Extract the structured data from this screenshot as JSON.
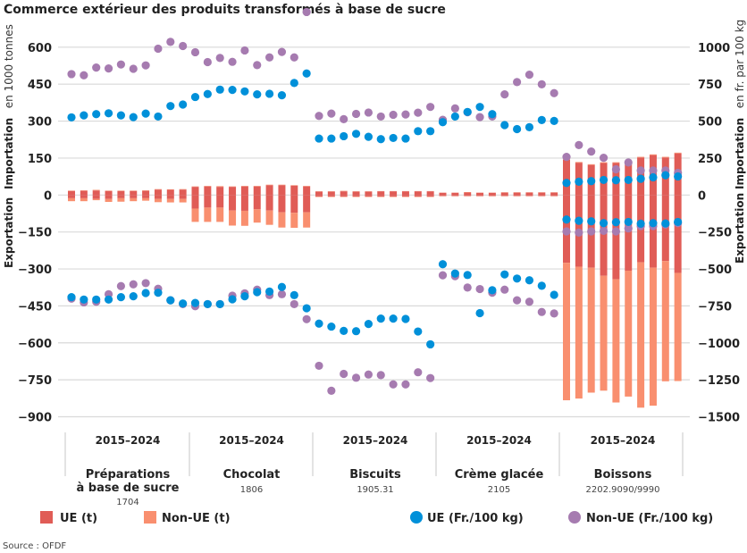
{
  "title": "Commerce extérieur des produits transformés à base de sucre",
  "source": "Source : OFDF",
  "colors": {
    "ue_t": "#e05c56",
    "non_ue_t": "#f98f6f",
    "ue_price": "#0090d9",
    "non_ue_price": "#a67bb0",
    "grid": "#d9d9d9"
  },
  "chart_data": {
    "type": "bar+scatter",
    "left_axis": {
      "label_bold": "Importation",
      "label_unit": "en 1000 tonnes",
      "label_export": "Exportation",
      "ylim": [
        -900,
        600
      ],
      "tick_values": [
        600,
        450,
        300,
        150,
        0,
        -150,
        -300,
        -450,
        -600,
        -750,
        -900
      ],
      "ticks": [
        "600",
        "450",
        "300",
        "150",
        "0",
        "−150",
        "−300",
        "−450",
        "−600",
        "−750",
        "−900"
      ]
    },
    "right_axis": {
      "label_bold": "Importation",
      "label_unit": "en fr. par 100 kg",
      "label_export": "Exportation",
      "ylim": [
        -1500,
        1000
      ],
      "tick_values": [
        1000,
        750,
        500,
        250,
        0,
        -250,
        -500,
        -750,
        -1000,
        -1250,
        -1500
      ],
      "ticks": [
        "1000",
        "750",
        "500",
        "250",
        "0",
        "−250",
        "−500",
        "−750",
        "−1000",
        "−1250",
        "−1500"
      ]
    },
    "grid": true,
    "groups": [
      {
        "years": "2015–2024",
        "name": "Préparations",
        "name2": "à base de sucre",
        "code": "1704"
      },
      {
        "years": "2015–2024",
        "name": "Chocolat",
        "name2": "",
        "code": "1806"
      },
      {
        "years": "2015–2024",
        "name": "Biscuits",
        "name2": "",
        "code": "1905.31"
      },
      {
        "years": "2015–2024",
        "name": "Crème glacée",
        "name2": "",
        "code": "2105"
      },
      {
        "years": "2015–2024",
        "name": "Boissons",
        "name2": "",
        "code": "2202.9090/9990"
      }
    ],
    "bars": {
      "ue_import": [
        16,
        17,
        18,
        16,
        16,
        16,
        17,
        22,
        21,
        22,
        33,
        35,
        33,
        33,
        35,
        35,
        40,
        40,
        38,
        35,
        14,
        14,
        15,
        14,
        14,
        15,
        15,
        15,
        15,
        15,
        9,
        9,
        10,
        9,
        9,
        10,
        10,
        10,
        10,
        10,
        143,
        131,
        122,
        130,
        130,
        132,
        152,
        162,
        152,
        169
      ],
      "non_ue_import": [
        2,
        2,
        3,
        2,
        2,
        2,
        2,
        2,
        2,
        2,
        2,
        2,
        3,
        2,
        2,
        2,
        2,
        2,
        2,
        2,
        1,
        1,
        2,
        1,
        1,
        1,
        1,
        1,
        1,
        1,
        1,
        1,
        2,
        1,
        1,
        1,
        1,
        1,
        1,
        1,
        3,
        3,
        3,
        3,
        3,
        3,
        3,
        3,
        3,
        3
      ],
      "ue_export": [
        -13,
        -13,
        -16,
        -16,
        -13,
        -13,
        -13,
        -16,
        -16,
        -16,
        -55,
        -51,
        -51,
        -63,
        -64,
        -58,
        -63,
        -70,
        -72,
        -70,
        -6,
        -6,
        -6,
        -6,
        -6,
        -6,
        -6,
        -6,
        -6,
        -6,
        -4,
        -4,
        -4,
        -4,
        -4,
        -4,
        -4,
        -4,
        -4,
        -4,
        -275,
        -291,
        -295,
        -328,
        -342,
        -307,
        -273,
        -295,
        -268,
        -316
      ],
      "non_ue_export": [
        -12,
        -12,
        -5,
        -12,
        -14,
        -12,
        -10,
        -13,
        -14,
        -14,
        -54,
        -58,
        -58,
        -61,
        -61,
        -54,
        -58,
        -62,
        -61,
        -62,
        -2,
        -2,
        -2,
        -2,
        -2,
        -2,
        -2,
        -2,
        -2,
        -2,
        -1,
        -1,
        -1,
        -1,
        -1,
        -1,
        -1,
        -1,
        -1,
        -1,
        -558,
        -535,
        -507,
        -466,
        -500,
        -511,
        -590,
        -560,
        -488,
        -439
      ]
    },
    "prices": {
      "ue_import": [
        525,
        539,
        547,
        553,
        539,
        527,
        551,
        531,
        602,
        612,
        663,
        683,
        713,
        711,
        701,
        681,
        685,
        675,
        758,
        822,
        382,
        382,
        398,
        414,
        394,
        378,
        386,
        382,
        432,
        432,
        493,
        531,
        562,
        596,
        547,
        473,
        446,
        459,
        507,
        501,
        82,
        90,
        94,
        102,
        100,
        102,
        110,
        120,
        134,
        126
      ],
      "non_ue_import": [
        818,
        810,
        862,
        856,
        883,
        854,
        877,
        990,
        1036,
        1008,
        966,
        899,
        927,
        901,
        978,
        879,
        931,
        968,
        931,
        1238,
        535,
        551,
        513,
        549,
        558,
        531,
        543,
        545,
        557,
        596,
        509,
        586,
        560,
        527,
        531,
        681,
        764,
        814,
        749,
        689,
        258,
        338,
        294,
        252,
        174,
        220,
        166,
        166,
        166,
        150
      ],
      "ue_export": [
        -691,
        -707,
        -707,
        -707,
        -691,
        -685,
        -663,
        -661,
        -712,
        -734,
        -730,
        -738,
        -738,
        -705,
        -685,
        -657,
        -653,
        -622,
        -677,
        -766,
        -870,
        -890,
        -919,
        -921,
        -872,
        -836,
        -836,
        -838,
        -923,
        -1010,
        -468,
        -531,
        -541,
        -799,
        -644,
        -537,
        -565,
        -577,
        -614,
        -675,
        -166,
        -174,
        -178,
        -190,
        -184,
        -182,
        -194,
        -190,
        -192,
        -182
      ],
      "non_ue_export": [
        -701,
        -726,
        -722,
        -671,
        -616,
        -604,
        -596,
        -634,
        -712,
        -738,
        -752,
        -738,
        -738,
        -681,
        -665,
        -640,
        -677,
        -671,
        -738,
        -840,
        -1155,
        -1324,
        -1210,
        -1236,
        -1214,
        -1218,
        -1281,
        -1281,
        -1199,
        -1238,
        -543,
        -549,
        -626,
        -636,
        -661,
        -640,
        -712,
        -722,
        -791,
        -801,
        -246,
        -254,
        -246,
        -242,
        -246,
        -226,
        -210,
        -210,
        -200,
        -190
      ]
    },
    "legend": {
      "placement": "bottom",
      "items": [
        {
          "label": "UE (t)",
          "kind": "square",
          "color": "#e05c56"
        },
        {
          "label": "Non-UE (t)",
          "kind": "square",
          "color": "#f98f6f"
        },
        {
          "label": "UE (Fr./100 kg)",
          "kind": "dot",
          "color": "#0090d9"
        },
        {
          "label": "Non-UE (Fr./100 kg)",
          "kind": "dot",
          "color": "#a67bb0"
        }
      ]
    }
  }
}
